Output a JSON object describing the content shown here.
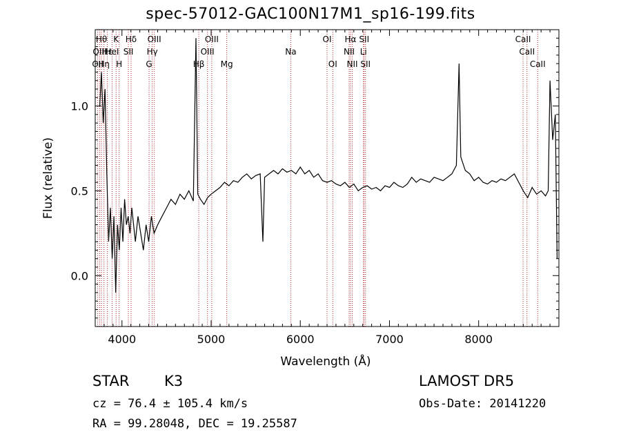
{
  "chart_data": {
    "type": "line",
    "title": "spec-57012-GAC100N17M1_sp16-199.fits",
    "xlabel": "Wavelength (Å)",
    "ylabel": "Flux (relative)",
    "xlim": [
      3700,
      8900
    ],
    "ylim": [
      -0.3,
      1.45
    ],
    "x_ticks": [
      4000,
      5000,
      6000,
      7000,
      8000
    ],
    "y_ticks": [
      0.0,
      0.5,
      1.0
    ],
    "x_tick_labels": [
      "4000",
      "5000",
      "6000",
      "7000",
      "8000"
    ],
    "y_tick_labels": [
      "0.0",
      "0.5",
      "1.0"
    ],
    "grid": false,
    "line_color": "#000000",
    "marker_color": "#b22222",
    "series": [
      {
        "x": [
          3750,
          3770,
          3790,
          3810,
          3830,
          3850,
          3870,
          3890,
          3910,
          3930,
          3950,
          3970,
          3990,
          4010,
          4030,
          4050,
          4070,
          4090,
          4110,
          4130,
          4150,
          4180,
          4210,
          4240,
          4270,
          4300,
          4330,
          4360,
          4400,
          4450,
          4500,
          4550,
          4600,
          4650,
          4700,
          4750,
          4800,
          4830,
          4850,
          4880,
          4920,
          4960,
          5000,
          5050,
          5100,
          5150,
          5200,
          5250,
          5300,
          5350,
          5400,
          5450,
          5500,
          5550,
          5580,
          5600,
          5650,
          5700,
          5750,
          5800,
          5850,
          5900,
          5950,
          6000,
          6050,
          6100,
          6150,
          6200,
          6250,
          6300,
          6350,
          6400,
          6450,
          6500,
          6550,
          6600,
          6650,
          6700,
          6750,
          6800,
          6850,
          6900,
          6950,
          7000,
          7050,
          7100,
          7150,
          7200,
          7250,
          7300,
          7350,
          7400,
          7450,
          7500,
          7550,
          7600,
          7650,
          7700,
          7750,
          7780,
          7800,
          7850,
          7900,
          7950,
          8000,
          8050,
          8100,
          8150,
          8200,
          8250,
          8300,
          8350,
          8400,
          8450,
          8500,
          8550,
          8600,
          8650,
          8700,
          8750,
          8780,
          8800,
          8830,
          8860,
          8880
        ],
        "y": [
          1.0,
          1.2,
          0.9,
          1.1,
          0.6,
          0.2,
          0.4,
          0.1,
          0.35,
          -0.1,
          0.3,
          0.15,
          0.4,
          0.2,
          0.45,
          0.3,
          0.35,
          0.25,
          0.4,
          0.3,
          0.2,
          0.35,
          0.25,
          0.15,
          0.3,
          0.2,
          0.35,
          0.25,
          0.3,
          0.35,
          0.4,
          0.45,
          0.42,
          0.48,
          0.45,
          0.5,
          0.44,
          1.4,
          0.48,
          0.45,
          0.42,
          0.46,
          0.48,
          0.5,
          0.52,
          0.55,
          0.53,
          0.56,
          0.55,
          0.58,
          0.6,
          0.57,
          0.59,
          0.6,
          0.2,
          0.58,
          0.6,
          0.62,
          0.6,
          0.63,
          0.61,
          0.62,
          0.6,
          0.64,
          0.6,
          0.62,
          0.58,
          0.6,
          0.56,
          0.55,
          0.56,
          0.54,
          0.53,
          0.55,
          0.52,
          0.54,
          0.5,
          0.52,
          0.53,
          0.51,
          0.52,
          0.5,
          0.53,
          0.52,
          0.55,
          0.53,
          0.52,
          0.54,
          0.58,
          0.55,
          0.57,
          0.56,
          0.55,
          0.58,
          0.57,
          0.56,
          0.58,
          0.6,
          0.65,
          1.25,
          0.7,
          0.62,
          0.6,
          0.56,
          0.58,
          0.55,
          0.54,
          0.56,
          0.55,
          0.57,
          0.56,
          0.58,
          0.6,
          0.55,
          0.5,
          0.46,
          0.52,
          0.48,
          0.5,
          0.47,
          0.5,
          1.15,
          0.8,
          0.95,
          0.1
        ]
      }
    ],
    "line_markers": [
      {
        "wavelength": 3728,
        "label": "OII",
        "row": 2
      },
      {
        "wavelength": 3750,
        "label": "OIII",
        "row": 1
      },
      {
        "wavelength": 3770,
        "label": "Hθ",
        "row": 0
      },
      {
        "wavelength": 3798,
        "label": "Hη",
        "row": 2
      },
      {
        "wavelength": 3835,
        "label": "Hε",
        "row": 1
      },
      {
        "wavelength": 3889,
        "label": "HeI",
        "row": 1
      },
      {
        "wavelength": 3934,
        "label": "K",
        "row": 0
      },
      {
        "wavelength": 3968,
        "label": "H",
        "row": 2
      },
      {
        "wavelength": 4072,
        "label": "SII",
        "row": 1
      },
      {
        "wavelength": 4102,
        "label": "Hδ",
        "row": 0
      },
      {
        "wavelength": 4304,
        "label": "G",
        "row": 2
      },
      {
        "wavelength": 4340,
        "label": "Hγ",
        "row": 1
      },
      {
        "wavelength": 4363,
        "label": "OIII",
        "row": 0
      },
      {
        "wavelength": 4861,
        "label": "Hβ",
        "row": 2
      },
      {
        "wavelength": 4959,
        "label": "OIII",
        "row": 1
      },
      {
        "wavelength": 5007,
        "label": "OIII",
        "row": 0
      },
      {
        "wavelength": 5175,
        "label": "Mg",
        "row": 2
      },
      {
        "wavelength": 5893,
        "label": "Na",
        "row": 1
      },
      {
        "wavelength": 6300,
        "label": "OI",
        "row": 0
      },
      {
        "wavelength": 6364,
        "label": "OI",
        "row": 2
      },
      {
        "wavelength": 6548,
        "label": "NII",
        "row": 1
      },
      {
        "wavelength": 6563,
        "label": "Hα",
        "row": 0
      },
      {
        "wavelength": 6583,
        "label": "NII",
        "row": 2
      },
      {
        "wavelength": 6708,
        "label": "Li",
        "row": 1
      },
      {
        "wavelength": 6716,
        "label": "SII",
        "row": 0
      },
      {
        "wavelength": 6731,
        "label": "SII",
        "row": 2
      },
      {
        "wavelength": 8498,
        "label": "CaII",
        "row": 0
      },
      {
        "wavelength": 8542,
        "label": "CaII",
        "row": 1
      },
      {
        "wavelength": 8662,
        "label": "CaII",
        "row": 2
      }
    ]
  },
  "info": {
    "object_type": "STAR",
    "subclass": "K3",
    "survey": "LAMOST DR5",
    "redshift_line": "cz = 76.4 ± 105.4 km/s",
    "obs_date_line": "Obs-Date: 20141220",
    "coords_line": "RA =  99.28048, DEC =  19.25587"
  }
}
